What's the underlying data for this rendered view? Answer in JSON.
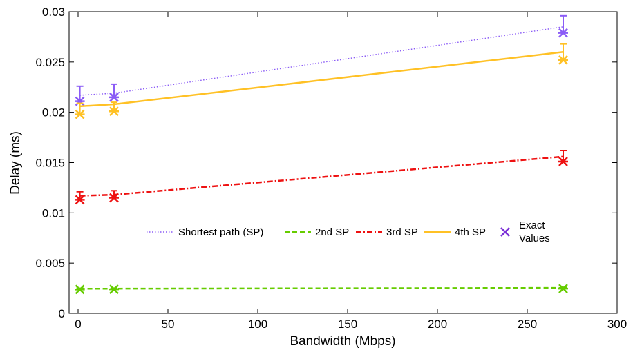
{
  "chart_data": {
    "type": "line",
    "title": "",
    "xlabel": "Bandwidth (Mbps)",
    "ylabel": "Delay (ms)",
    "xlim": [
      -5,
      300
    ],
    "ylim": [
      0,
      0.03
    ],
    "x_ticks": [
      0,
      50,
      100,
      150,
      200,
      250,
      300
    ],
    "x_tick_labels": [
      "0",
      "50",
      "100",
      "150",
      "200",
      "250",
      "300"
    ],
    "y_ticks": [
      0,
      0.005,
      0.01,
      0.015,
      0.02,
      0.025,
      0.03
    ],
    "y_tick_labels": [
      "0",
      "0.005",
      "0.01",
      "0.015",
      "0.02",
      "0.025",
      "0.03"
    ],
    "grid": false,
    "legend_position": "center-right",
    "x": [
      1,
      20,
      270
    ],
    "series": [
      {
        "name": "Shortest path (SP)",
        "color": "#8b5cf6",
        "line_style": "dotted",
        "model_values": [
          0.0217,
          0.0219,
          0.0285
        ],
        "exact_values": [
          0.0211,
          0.0215,
          0.0279
        ],
        "error_upper": [
          0.0226,
          0.0228,
          0.0296
        ]
      },
      {
        "name": "2nd SP",
        "color": "#66cc00",
        "line_style": "dashed",
        "model_values": [
          0.00245,
          0.00246,
          0.00253
        ],
        "exact_values": [
          0.00238,
          0.00239,
          0.00246
        ],
        "error_upper": [
          0.0025,
          0.00252,
          0.0026
        ]
      },
      {
        "name": "3rd SP",
        "color": "#ee1111",
        "line_style": "dashdot",
        "model_values": [
          0.0117,
          0.0118,
          0.0156
        ],
        "exact_values": [
          0.0113,
          0.0115,
          0.0151
        ],
        "error_upper": [
          0.0121,
          0.0122,
          0.0162
        ]
      },
      {
        "name": "4th SP",
        "color": "#ffc125",
        "line_style": "solid",
        "model_values": [
          0.0206,
          0.0208,
          0.026
        ],
        "exact_values": [
          0.0198,
          0.0201,
          0.0252
        ],
        "error_upper": [
          0.0209,
          0.021,
          0.0268
        ]
      }
    ],
    "exact_marker": {
      "name": "Exact\nValues",
      "line1": "Exact",
      "line2": "Values",
      "color": "#7b2fd6"
    }
  }
}
